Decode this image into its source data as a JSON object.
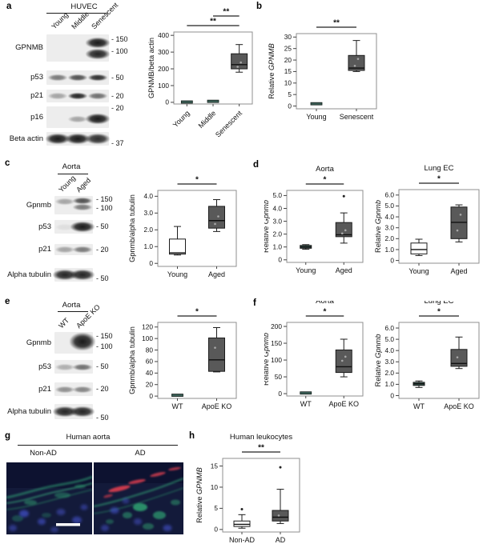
{
  "panel_labels": {
    "a": "a",
    "b": "b",
    "c": "c",
    "d": "d",
    "e": "e",
    "f": "f",
    "g": "g",
    "h": "h"
  },
  "colors": {
    "box_gray": "#595959",
    "box_white": "#ffffff",
    "box_teal": "#3c6057",
    "sig_line": "#222222",
    "micro_bg": "#131a3a",
    "micro_green": "#2f9f72",
    "micro_blue": "#4553cf",
    "micro_red": "#d93d4f",
    "scalebar": "#ffffff"
  },
  "blots": {
    "a": {
      "tissue": "HUVEC",
      "lanes": [
        "Young",
        "Middle",
        "Senescent"
      ],
      "rows": [
        {
          "label": "GPNMB",
          "markers": [
            {
              "t": "- 150",
              "f": 0.2
            },
            {
              "t": "- 100",
              "f": 0.62
            }
          ],
          "bands": [
            [],
            [],
            [
              {
                "f": 0.3,
                "i": 1,
                "s": "l"
              },
              {
                "f": 0.72,
                "i": 0.95,
                "s": "l"
              }
            ]
          ]
        },
        {
          "label": "p53",
          "markers": [
            {
              "t": "- 50",
              "f": 0.5
            }
          ],
          "bands": [
            [
              {
                "f": 0.5,
                "i": 0.55
              }
            ],
            [
              {
                "f": 0.5,
                "i": 0.75
              }
            ],
            [
              {
                "f": 0.5,
                "i": 0.9
              }
            ]
          ]
        },
        {
          "label": "p21",
          "markers": [
            {
              "t": "- 20",
              "f": 0.5
            }
          ],
          "bands": [
            [
              {
                "f": 0.5,
                "i": 0.35
              }
            ],
            [
              {
                "f": 0.5,
                "i": 0.95
              }
            ],
            [
              {
                "f": 0.5,
                "i": 0.6
              }
            ]
          ]
        },
        {
          "label": "p16",
          "markers": [
            {
              "t": "- 20",
              "f": 0.08
            }
          ],
          "bands": [
            [],
            [
              {
                "f": 0.58,
                "i": 0.35
              }
            ],
            [
              {
                "f": 0.58,
                "i": 1,
                "s": "l"
              }
            ]
          ]
        },
        {
          "label": "Beta actin",
          "markers": [
            {
              "t": "- 37",
              "f": 0.88
            }
          ],
          "bands": [
            [
              {
                "f": 0.5,
                "i": 1,
                "s": "l"
              }
            ],
            [
              {
                "f": 0.5,
                "i": 1,
                "s": "l"
              }
            ],
            [
              {
                "f": 0.5,
                "i": 0.9,
                "s": "l"
              }
            ]
          ]
        }
      ]
    },
    "c": {
      "tissue": "Aorta",
      "lanes": [
        "Young",
        "Aged"
      ],
      "rows": [
        {
          "label": "Gpnmb",
          "markers": [
            {
              "t": "- 150",
              "f": 0.2
            },
            {
              "t": "- 100",
              "f": 0.68
            }
          ],
          "bands": [
            [
              {
                "f": 0.3,
                "i": 0.35
              }
            ],
            [
              {
                "f": 0.26,
                "i": 0.75
              },
              {
                "f": 0.62,
                "i": 0.55
              }
            ]
          ]
        },
        {
          "label": "p53",
          "markers": [
            {
              "t": "- 50",
              "f": 0.5
            }
          ],
          "bands": [
            [
              {
                "f": 0.5,
                "i": 0.07
              }
            ],
            [
              {
                "f": 0.5,
                "i": 1,
                "s": "l"
              }
            ]
          ]
        },
        {
          "label": "p21",
          "markers": [
            {
              "t": "- 20",
              "f": 0.5
            }
          ],
          "bands": [
            [
              {
                "f": 0.5,
                "i": 0.35
              }
            ],
            [
              {
                "f": 0.5,
                "i": 0.55
              }
            ]
          ]
        },
        {
          "label": "Alpha tubulin",
          "markers": [
            {
              "t": "- 50",
              "f": 0.8
            }
          ],
          "bands": [
            [
              {
                "f": 0.5,
                "i": 0.95,
                "s": "l"
              }
            ],
            [
              {
                "f": 0.5,
                "i": 0.95,
                "s": "l"
              }
            ]
          ]
        }
      ]
    },
    "e": {
      "tissue": "Aorta",
      "lanes": [
        "WT",
        "ApoE KO"
      ],
      "rows": [
        {
          "label": "Gpnmb",
          "markers": [
            {
              "t": "- 150",
              "f": 0.2
            },
            {
              "t": "- 100",
              "f": 0.7
            }
          ],
          "bands": [
            [],
            [
              {
                "f": 0.45,
                "i": 1,
                "s": "xl"
              }
            ]
          ]
        },
        {
          "label": "p53",
          "markers": [
            {
              "t": "- 50",
              "f": 0.5
            }
          ],
          "bands": [
            [
              {
                "f": 0.5,
                "i": 0.3
              }
            ],
            [
              {
                "f": 0.5,
                "i": 0.6
              }
            ]
          ]
        },
        {
          "label": "p21",
          "markers": [
            {
              "t": "- 20",
              "f": 0.5
            }
          ],
          "bands": [
            [
              {
                "f": 0.5,
                "i": 0.45
              }
            ],
            [
              {
                "f": 0.5,
                "i": 0.5
              }
            ]
          ]
        },
        {
          "label": "Alpha tubulin",
          "markers": [
            {
              "t": "- 50",
              "f": 0.9
            }
          ],
          "bands": [
            [
              {
                "f": 0.5,
                "i": 0.95,
                "s": "l"
              }
            ],
            [
              {
                "f": 0.5,
                "i": 0.95,
                "s": "l"
              }
            ]
          ]
        }
      ]
    }
  },
  "microscopy": {
    "title": "Human aorta",
    "images": [
      {
        "label": "Non-AD"
      },
      {
        "label": "AD"
      }
    ]
  },
  "chart_data": [
    {
      "id": "a",
      "panel": "a",
      "type": "box",
      "title": "",
      "ylabel": "GPNMB/beta actin",
      "ylim": [
        -10,
        420
      ],
      "yticks": [
        {
          "v": 0,
          "t": "0"
        },
        {
          "v": 100,
          "t": "100"
        },
        {
          "v": 200,
          "t": "200"
        },
        {
          "v": 300,
          "t": "300"
        },
        {
          "v": 400,
          "t": "400"
        }
      ],
      "categories": [
        "Young",
        "Middle",
        "Senescent"
      ],
      "boxes": [
        {
          "dash": true,
          "med": 2,
          "fill": "teal"
        },
        {
          "dash": true,
          "med": 6,
          "fill": "teal"
        },
        {
          "whislo": 180,
          "q1": 200,
          "med": 225,
          "q3": 290,
          "whishi": 345,
          "fill": "gray",
          "pts": [
            212,
            238
          ]
        }
      ],
      "sig": [
        {
          "a": 0,
          "b": 2,
          "label": "**",
          "lvl": 0
        },
        {
          "a": 1,
          "b": 2,
          "label": "**",
          "lvl": 1
        }
      ]
    },
    {
      "id": "b",
      "panel": "b",
      "type": "box",
      "title": "",
      "ylabel": "Relative *GPNMB*",
      "ylim": [
        -1.2,
        31.5
      ],
      "yticks": [
        {
          "v": 0,
          "t": "0"
        },
        {
          "v": 5,
          "t": "5"
        },
        {
          "v": 10,
          "t": "10"
        },
        {
          "v": 15,
          "t": "15"
        },
        {
          "v": 20,
          "t": "20"
        },
        {
          "v": 25,
          "t": "25"
        },
        {
          "v": 30,
          "t": "30"
        }
      ],
      "categories": [
        "Young",
        "Senescent"
      ],
      "boxes": [
        {
          "dash": true,
          "med": 1,
          "fill": "teal"
        },
        {
          "whislo": 15,
          "q1": 15.5,
          "med": 16.5,
          "q3": 22,
          "whishi": 28.5,
          "fill": "gray",
          "pts": [
            17.5,
            20.5
          ]
        }
      ],
      "sig": [
        {
          "a": 0,
          "b": 1,
          "label": "**",
          "lvl": 0
        }
      ]
    },
    {
      "id": "c",
      "panel": "c",
      "type": "box",
      "title": "",
      "ylabel": "Gpnmb/alpha tubulin",
      "ylim": [
        -0.18,
        4.35
      ],
      "yticks": [
        {
          "v": 0,
          "t": "0"
        },
        {
          "v": 1,
          "t": "1.0"
        },
        {
          "v": 2,
          "t": "2.0"
        },
        {
          "v": 3,
          "t": "3.0"
        },
        {
          "v": 4,
          "t": "4.0"
        }
      ],
      "categories": [
        "Young",
        "Aged"
      ],
      "boxes": [
        {
          "whislo": 0.5,
          "q1": 0.55,
          "med": 0.63,
          "q3": 1.45,
          "whishi": 2.2,
          "fill": "white"
        },
        {
          "whislo": 1.9,
          "q1": 2.1,
          "med": 2.55,
          "q3": 3.4,
          "whishi": 3.8,
          "fill": "gray",
          "pts": [
            2.35,
            2.8
          ]
        }
      ],
      "sig": [
        {
          "a": 0,
          "b": 1,
          "label": "*",
          "lvl": 0
        }
      ]
    },
    {
      "id": "d1",
      "panel": "d",
      "type": "box",
      "title": "Aorta",
      "ylabel": "Relative *Gpnmb*",
      "ylim": [
        -0.2,
        5.4
      ],
      "yticks": [
        {
          "v": 0,
          "t": "0"
        },
        {
          "v": 1,
          "t": "1.0"
        },
        {
          "v": 2,
          "t": "2.0"
        },
        {
          "v": 3,
          "t": "3.0"
        },
        {
          "v": 4,
          "t": "4.0"
        },
        {
          "v": 5,
          "t": "5.0"
        }
      ],
      "categories": [
        "Young",
        "Aged"
      ],
      "boxes": [
        {
          "whislo": 0.82,
          "q1": 0.9,
          "med": 1.0,
          "q3": 1.12,
          "whishi": 1.18,
          "fill": "teal"
        },
        {
          "whislo": 1.3,
          "q1": 1.8,
          "med": 1.95,
          "q3": 2.9,
          "whishi": 3.65,
          "fill": "gray",
          "pts": [
            2.05,
            2.3
          ],
          "outliers": [
            4.95
          ]
        }
      ],
      "sig": [
        {
          "a": 0,
          "b": 1,
          "label": "*",
          "lvl": 0
        }
      ]
    },
    {
      "id": "d2",
      "panel": "d",
      "type": "box",
      "title": "Lung EC",
      "ylabel": "Relative *Gpnmb*",
      "ylim": [
        -0.25,
        6.5
      ],
      "yticks": [
        {
          "v": 0,
          "t": "0"
        },
        {
          "v": 1,
          "t": "1.0"
        },
        {
          "v": 2,
          "t": "2.0"
        },
        {
          "v": 3,
          "t": "3.0"
        },
        {
          "v": 4,
          "t": "4.0"
        },
        {
          "v": 5,
          "t": "5.0"
        },
        {
          "v": 6,
          "t": "6.0"
        }
      ],
      "categories": [
        "Young",
        "Aged"
      ],
      "boxes": [
        {
          "whislo": 0.45,
          "q1": 0.6,
          "med": 1.0,
          "q3": 1.6,
          "whishi": 1.95,
          "fill": "white"
        },
        {
          "whislo": 1.7,
          "q1": 2.0,
          "med": 3.5,
          "q3": 4.9,
          "whishi": 5.1,
          "fill": "gray",
          "pts": [
            2.75,
            4.2
          ]
        }
      ],
      "sig": [
        {
          "a": 0,
          "b": 1,
          "label": "*",
          "lvl": 0
        }
      ]
    },
    {
      "id": "e",
      "panel": "e",
      "type": "box",
      "title": "",
      "ylabel": "Gpnmb/alpha tubulin",
      "ylim": [
        -4,
        128
      ],
      "yticks": [
        {
          "v": 0,
          "t": "0"
        },
        {
          "v": 20,
          "t": "20"
        },
        {
          "v": 40,
          "t": "40"
        },
        {
          "v": 60,
          "t": "60"
        },
        {
          "v": 80,
          "t": "80"
        },
        {
          "v": 100,
          "t": "100"
        },
        {
          "v": 120,
          "t": "120"
        }
      ],
      "categories": [
        "WT",
        "ApoE KO"
      ],
      "boxes": [
        {
          "dash": true,
          "med": 1.5,
          "fill": "teal"
        },
        {
          "whislo": 42,
          "q1": 43,
          "med": 63,
          "q3": 101,
          "whishi": 119,
          "fill": "gray",
          "pts": [
            84
          ]
        }
      ],
      "sig": [
        {
          "a": 0,
          "b": 1,
          "label": "*",
          "lvl": 0
        }
      ]
    },
    {
      "id": "f1",
      "panel": "f",
      "type": "box",
      "title": "Aorta",
      "ylabel": "Relative *Gpnmb*",
      "ylim": [
        -7,
        212
      ],
      "yticks": [
        {
          "v": 0,
          "t": "0"
        },
        {
          "v": 50,
          "t": "50"
        },
        {
          "v": 100,
          "t": "100"
        },
        {
          "v": 150,
          "t": "150"
        },
        {
          "v": 200,
          "t": "200"
        }
      ],
      "categories": [
        "WT",
        "ApoE KO"
      ],
      "boxes": [
        {
          "dash": true,
          "med": 2,
          "fill": "teal"
        },
        {
          "whislo": 50,
          "q1": 63,
          "med": 80,
          "q3": 130,
          "whishi": 162,
          "fill": "gray",
          "pts": [
            98,
            110
          ]
        }
      ],
      "sig": [
        {
          "a": 0,
          "b": 1,
          "label": "*",
          "lvl": 0
        }
      ]
    },
    {
      "id": "f2",
      "panel": "f",
      "type": "box",
      "title": "Lung EC",
      "ylabel": "Relative *Gpnmb*",
      "ylim": [
        -0.25,
        6.5
      ],
      "yticks": [
        {
          "v": 0,
          "t": "0"
        },
        {
          "v": 1,
          "t": "1.0"
        },
        {
          "v": 2,
          "t": "2.0"
        },
        {
          "v": 3,
          "t": "3.0"
        },
        {
          "v": 4,
          "t": "4.0"
        },
        {
          "v": 5,
          "t": "5.0"
        },
        {
          "v": 6,
          "t": "6.0"
        }
      ],
      "categories": [
        "WT",
        "ApoE KO"
      ],
      "boxes": [
        {
          "whislo": 0.72,
          "q1": 0.9,
          "med": 1.05,
          "q3": 1.18,
          "whishi": 1.3,
          "fill": "teal"
        },
        {
          "whislo": 2.4,
          "q1": 2.6,
          "med": 2.85,
          "q3": 4.1,
          "whishi": 5.2,
          "fill": "gray",
          "pts": [
            3.4
          ]
        }
      ],
      "sig": [
        {
          "a": 0,
          "b": 1,
          "label": "*",
          "lvl": 0
        }
      ]
    },
    {
      "id": "h",
      "panel": "h",
      "type": "box",
      "title": "Human leukocytes",
      "ylabel": "Relative *GPNMB*",
      "ylim": [
        -0.6,
        16.8
      ],
      "yticks": [
        {
          "v": 0,
          "t": "0"
        },
        {
          "v": 5,
          "t": "5"
        },
        {
          "v": 10,
          "t": "10"
        },
        {
          "v": 15,
          "t": "15"
        }
      ],
      "categories": [
        "Non-AD",
        "AD"
      ],
      "boxes": [
        {
          "whislo": 0.3,
          "q1": 0.7,
          "med": 1.2,
          "q3": 2.0,
          "whishi": 3.5,
          "fill": "white",
          "outliers": [
            4.8
          ]
        },
        {
          "whislo": 1.4,
          "q1": 2.0,
          "med": 2.9,
          "q3": 4.5,
          "whishi": 9.5,
          "fill": "gray",
          "pts": [
            3.3
          ],
          "outliers": [
            14.7
          ]
        }
      ],
      "sig": [
        {
          "a": 0,
          "b": 1,
          "label": "**",
          "lvl": 0
        }
      ]
    }
  ]
}
